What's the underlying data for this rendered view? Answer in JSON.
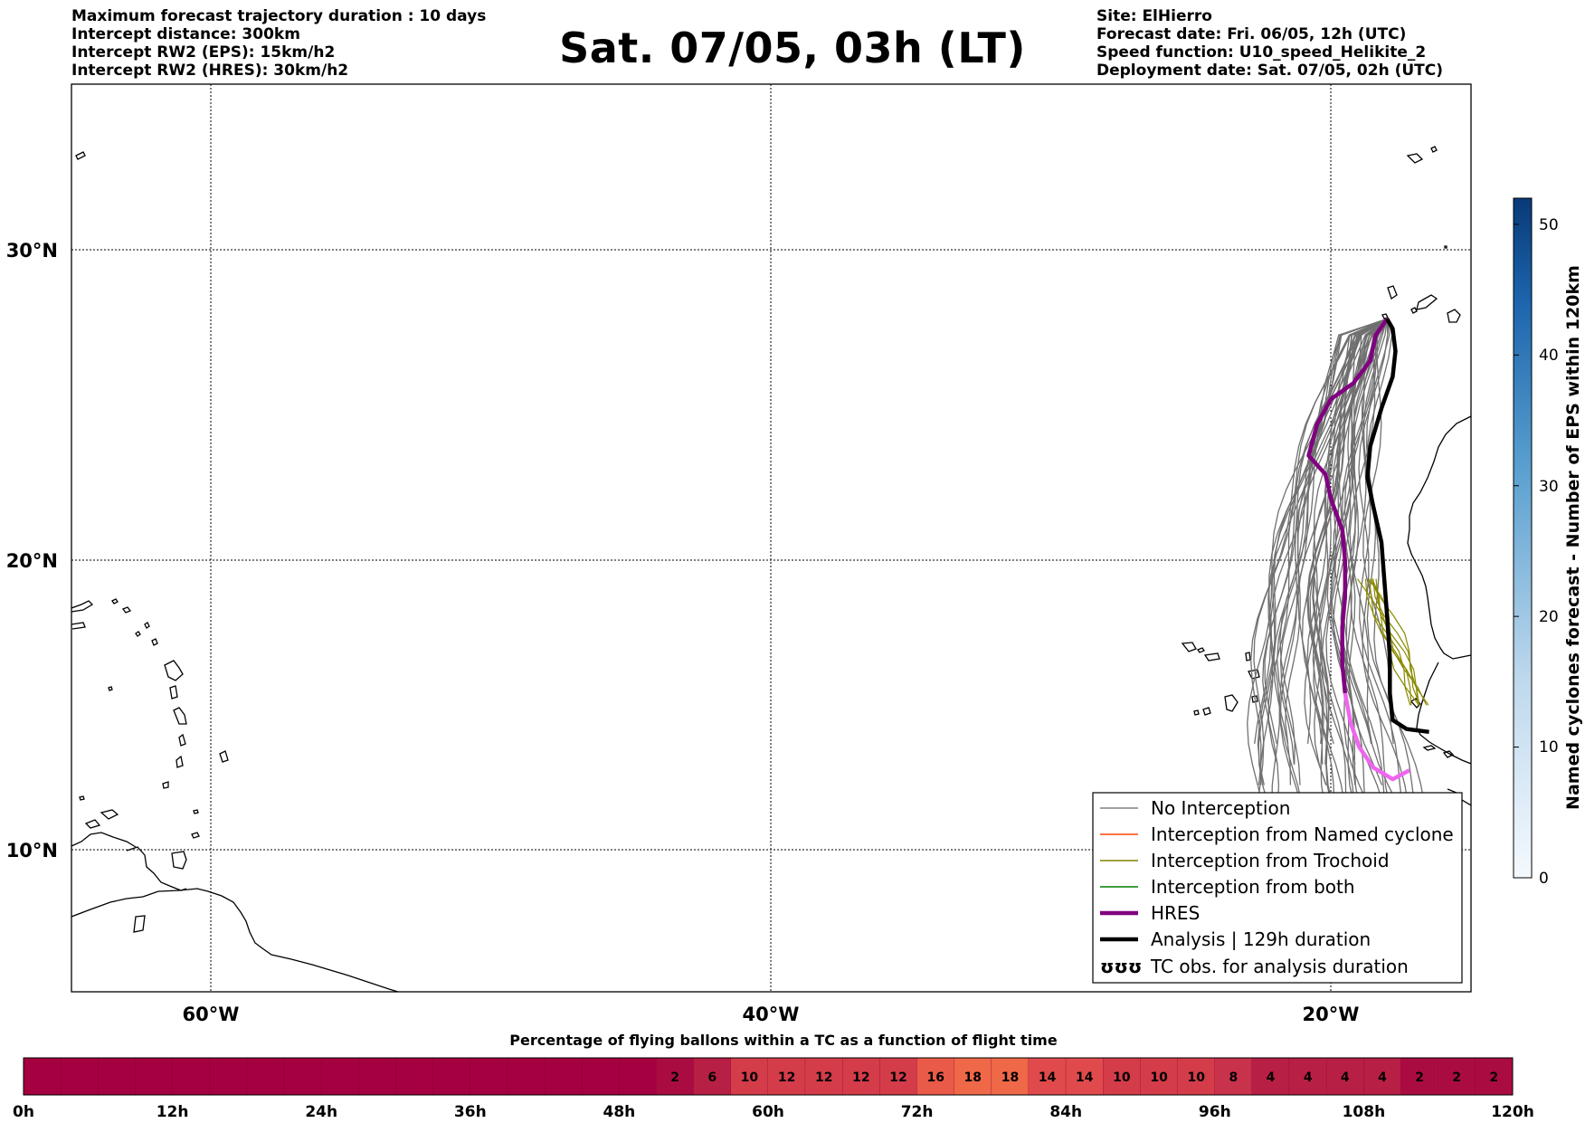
{
  "header_left": [
    "Maximum forecast trajectory duration : 10 days",
    "Intercept distance: 300km",
    "Intercept RW2 (EPS):  15km/h2",
    "Intercept RW2 (HRES): 30km/h2"
  ],
  "header_right": [
    "Site: ElHierro",
    "Forecast date: Fri. 06/05, 12h (UTC)",
    "Speed function: U10_speed_Helikite_2",
    "Deployment date: Sat. 07/05, 02h (UTC)"
  ],
  "title": "Sat. 07/05, 03h (LT)",
  "map": {
    "lat_labels": [
      "30°N",
      "20°N",
      "10°N"
    ],
    "lon_labels": [
      "60°W",
      "40°W",
      "20°W"
    ],
    "lon_range": [
      -65,
      -15
    ],
    "lat_range": [
      5,
      34.3
    ],
    "launch_site": [
      -18.0,
      27.3
    ]
  },
  "legend": [
    {
      "label": "No Interception",
      "color": "#808080"
    },
    {
      "label": "Interception from Named cyclone",
      "color": "#ff4500"
    },
    {
      "label": "Interception from Trochoid",
      "color": "#808000"
    },
    {
      "label": "Interception from both",
      "color": "#008000"
    },
    {
      "label": "HRES",
      "color": "#800080"
    },
    {
      "label": "Analysis | 129h duration",
      "color": "#000000"
    },
    {
      "label": "TC obs. for analysis duration",
      "color": "#000000",
      "icon": "ʊʊʊ"
    }
  ],
  "colorbar": {
    "label": "Named cyclones forecast - Number of EPS within 120km",
    "ticks": [
      "0",
      "10",
      "20",
      "30",
      "40",
      "50"
    ],
    "range": [
      0,
      52
    ]
  },
  "timeline": {
    "title": "Percentage of flying ballons within a TC as a function of flight time",
    "ticks": [
      "0h",
      "12h",
      "24h",
      "36h",
      "48h",
      "60h",
      "72h",
      "84h",
      "96h",
      "108h",
      "120h"
    ],
    "leading_empty_cells": 17,
    "cells": [
      "2",
      "6",
      "10",
      "12",
      "12",
      "12",
      "12",
      "16",
      "18",
      "18",
      "14",
      "14",
      "10",
      "10",
      "10",
      "8",
      "4",
      "4",
      "4",
      "4",
      "2",
      "2",
      "2"
    ]
  },
  "chart_data": {
    "type": "map-trajectories",
    "hres": [
      [
        -18.0,
        27.3
      ],
      [
        -18.4,
        26.8
      ],
      [
        -18.6,
        26.0
      ],
      [
        -19.2,
        25.3
      ],
      [
        -20.0,
        24.8
      ],
      [
        -20.5,
        24.0
      ],
      [
        -20.8,
        23.0
      ],
      [
        -20.2,
        22.4
      ],
      [
        -20.0,
        21.6
      ],
      [
        -19.6,
        20.6
      ],
      [
        -19.5,
        19.6
      ],
      [
        -19.5,
        18.4
      ],
      [
        -19.6,
        17.4
      ],
      [
        -19.6,
        16.2
      ],
      [
        -19.5,
        15.2
      ],
      [
        -19.3,
        14.2
      ],
      [
        -19.0,
        13.4
      ],
      [
        -18.5,
        12.7
      ],
      [
        -17.8,
        12.3
      ],
      [
        -17.2,
        12.6
      ]
    ],
    "analysis": [
      [
        -18.0,
        27.3
      ],
      [
        -17.8,
        27.0
      ],
      [
        -17.7,
        26.3
      ],
      [
        -17.8,
        25.5
      ],
      [
        -18.2,
        24.5
      ],
      [
        -18.6,
        23.3
      ],
      [
        -18.7,
        22.3
      ],
      [
        -18.5,
        21.4
      ],
      [
        -18.2,
        20.2
      ],
      [
        -18.1,
        19.0
      ],
      [
        -18.0,
        17.8
      ],
      [
        -17.9,
        16.4
      ],
      [
        -17.9,
        15.2
      ],
      [
        -17.8,
        14.3
      ],
      [
        -17.3,
        14.0
      ],
      [
        -16.5,
        13.9
      ]
    ],
    "eps_member_count": 50
  }
}
